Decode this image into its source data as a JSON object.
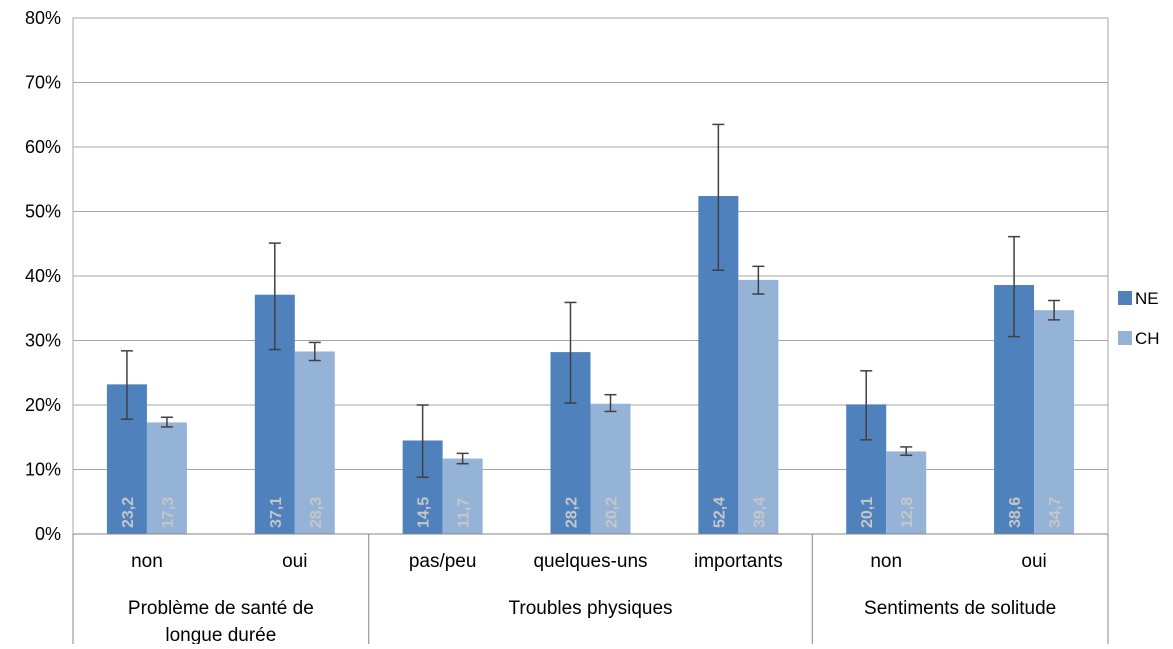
{
  "chart_data": {
    "type": "bar",
    "title": "",
    "xlabel": "",
    "ylabel": "",
    "ylim": [
      0,
      80
    ],
    "y_ticks": [
      "0%",
      "10%",
      "20%",
      "30%",
      "40%",
      "50%",
      "60%",
      "70%",
      "80%"
    ],
    "grid": true,
    "legend_position": "right",
    "groups": [
      {
        "label_lines": [
          "Problème de santé de",
          "longue durée"
        ],
        "categories": [
          "non",
          "oui"
        ]
      },
      {
        "label_lines": [
          "Troubles physiques"
        ],
        "categories": [
          "pas/peu",
          "quelques-uns",
          "importants"
        ]
      },
      {
        "label_lines": [
          "Sentiments de solitude"
        ],
        "categories": [
          "non",
          "oui"
        ]
      }
    ],
    "categories": [
      "non",
      "oui",
      "pas/peu",
      "quelques-uns",
      "importants",
      "non",
      "oui"
    ],
    "series": [
      {
        "name": "NE",
        "color": "#4F81BD",
        "values": [
          23.2,
          37.1,
          14.5,
          28.2,
          52.4,
          20.1,
          38.6
        ],
        "labels": [
          "23,2",
          "37,1",
          "14,5",
          "28,2",
          "52,4",
          "20,1",
          "38,6"
        ],
        "error_low": [
          17.8,
          28.6,
          8.8,
          20.3,
          40.9,
          14.6,
          30.6
        ],
        "error_high": [
          28.4,
          45.1,
          20.0,
          35.9,
          63.5,
          25.3,
          46.1
        ]
      },
      {
        "name": "CH",
        "color": "#95B3D7",
        "values": [
          17.3,
          28.3,
          11.7,
          20.2,
          39.4,
          12.8,
          34.7
        ],
        "labels": [
          "17,3",
          "28,3",
          "11,7",
          "20,2",
          "39,4",
          "12,8",
          "34,7"
        ],
        "error_low": [
          16.6,
          26.9,
          10.9,
          19.0,
          37.2,
          12.2,
          33.2
        ],
        "error_high": [
          18.1,
          29.7,
          12.5,
          21.6,
          41.5,
          13.5,
          36.2
        ]
      }
    ],
    "data_label_color": "#C6C6C6"
  }
}
